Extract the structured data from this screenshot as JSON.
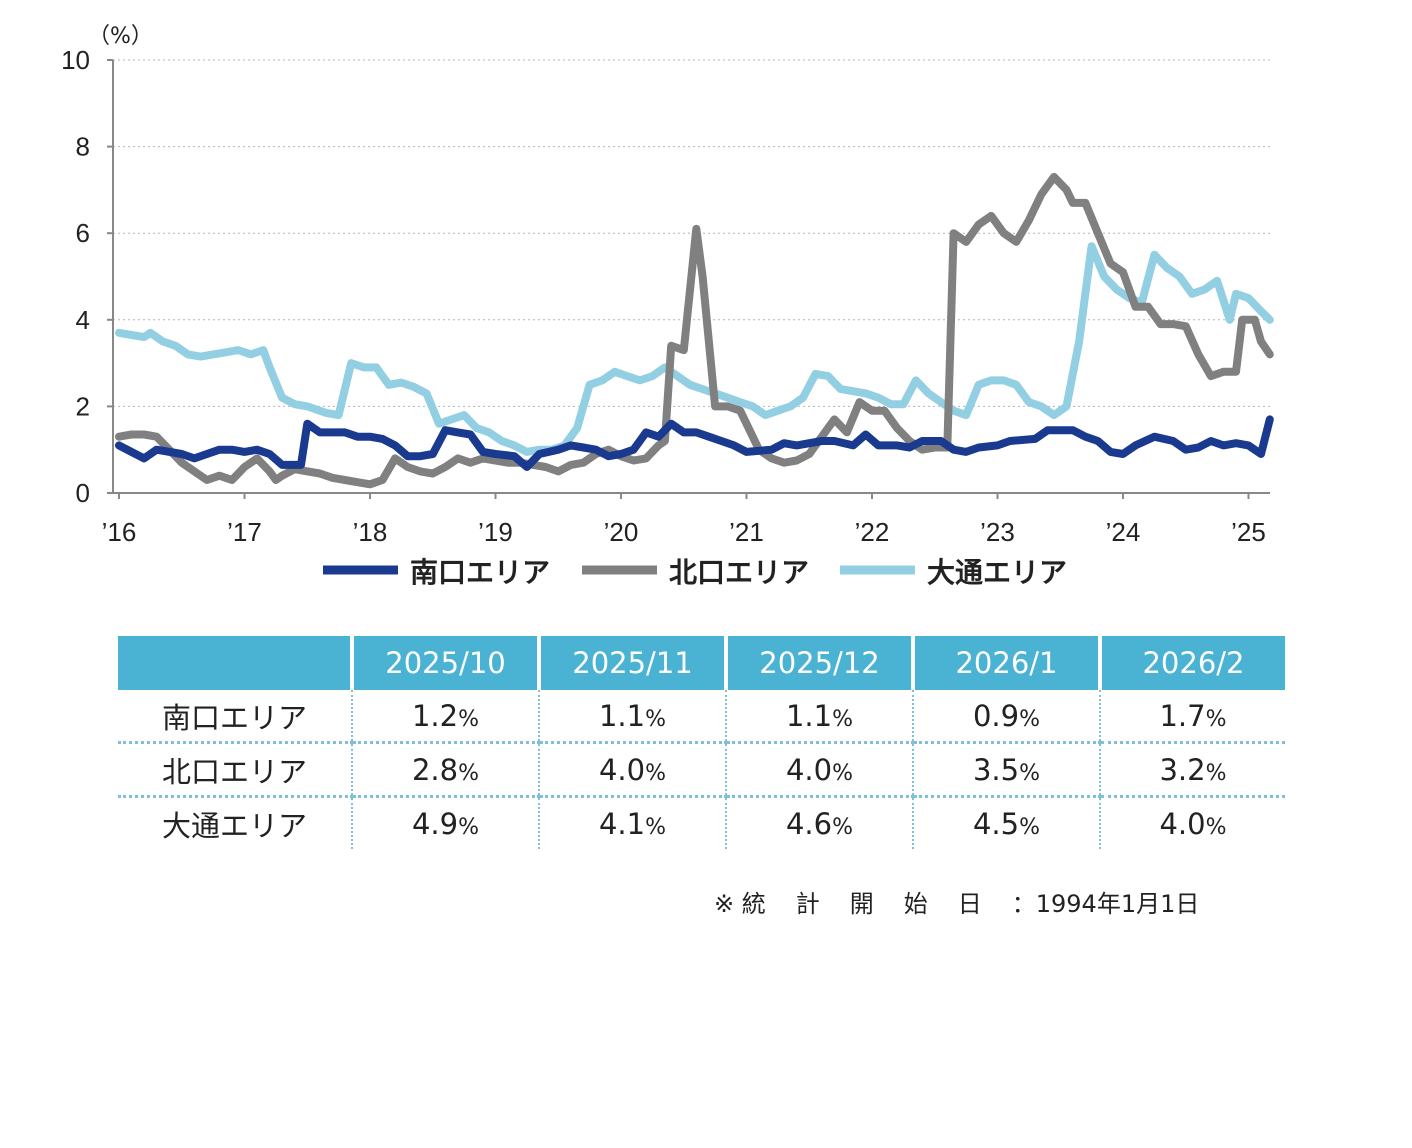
{
  "chart_data": {
    "type": "line",
    "unit_label": "（%）",
    "ylim": [
      0,
      10
    ],
    "yticks": [
      0,
      2,
      4,
      6,
      8,
      10
    ],
    "xlim": [
      2016,
      2025.25
    ],
    "xticks": [
      {
        "label": "’16",
        "value": 2016
      },
      {
        "label": "’17",
        "value": 2017
      },
      {
        "label": "’18",
        "value": 2018
      },
      {
        "label": "’19",
        "value": 2019
      },
      {
        "label": "’20",
        "value": 2020
      },
      {
        "label": "’21",
        "value": 2021
      },
      {
        "label": "’22",
        "value": 2022
      },
      {
        "label": "’23",
        "value": 2023
      },
      {
        "label": "’24",
        "value": 2024
      },
      {
        "label": "’25",
        "value": 2025
      }
    ],
    "grid": true,
    "legend_position": "bottom",
    "series": [
      {
        "name": "南口エリア",
        "color": "#1a3a8f",
        "points": [
          [
            2016.0,
            1.1
          ],
          [
            2016.1,
            0.95
          ],
          [
            2016.2,
            0.8
          ],
          [
            2016.3,
            1.0
          ],
          [
            2016.5,
            0.9
          ],
          [
            2016.6,
            0.8
          ],
          [
            2016.8,
            1.0
          ],
          [
            2016.9,
            1.0
          ],
          [
            2017.0,
            0.95
          ],
          [
            2017.1,
            1.0
          ],
          [
            2017.2,
            0.9
          ],
          [
            2017.3,
            0.65
          ],
          [
            2017.45,
            0.65
          ],
          [
            2017.5,
            1.6
          ],
          [
            2017.6,
            1.4
          ],
          [
            2017.8,
            1.4
          ],
          [
            2017.9,
            1.3
          ],
          [
            2018.0,
            1.3
          ],
          [
            2018.1,
            1.25
          ],
          [
            2018.2,
            1.1
          ],
          [
            2018.3,
            0.85
          ],
          [
            2018.4,
            0.85
          ],
          [
            2018.5,
            0.9
          ],
          [
            2018.6,
            1.45
          ],
          [
            2018.7,
            1.4
          ],
          [
            2018.8,
            1.35
          ],
          [
            2018.9,
            0.95
          ],
          [
            2019.0,
            0.9
          ],
          [
            2019.15,
            0.85
          ],
          [
            2019.25,
            0.6
          ],
          [
            2019.35,
            0.9
          ],
          [
            2019.5,
            1.0
          ],
          [
            2019.6,
            1.1
          ],
          [
            2019.7,
            1.05
          ],
          [
            2019.8,
            1.0
          ],
          [
            2019.9,
            0.85
          ],
          [
            2020.0,
            0.9
          ],
          [
            2020.1,
            1.0
          ],
          [
            2020.2,
            1.4
          ],
          [
            2020.3,
            1.3
          ],
          [
            2020.4,
            1.6
          ],
          [
            2020.5,
            1.4
          ],
          [
            2020.6,
            1.4
          ],
          [
            2020.7,
            1.3
          ],
          [
            2020.8,
            1.2
          ],
          [
            2020.9,
            1.1
          ],
          [
            2021.0,
            0.95
          ],
          [
            2021.2,
            1.0
          ],
          [
            2021.3,
            1.15
          ],
          [
            2021.4,
            1.1
          ],
          [
            2021.6,
            1.2
          ],
          [
            2021.7,
            1.2
          ],
          [
            2021.85,
            1.1
          ],
          [
            2021.95,
            1.35
          ],
          [
            2022.05,
            1.1
          ],
          [
            2022.2,
            1.1
          ],
          [
            2022.3,
            1.05
          ],
          [
            2022.4,
            1.2
          ],
          [
            2022.55,
            1.2
          ],
          [
            2022.65,
            1.0
          ],
          [
            2022.75,
            0.95
          ],
          [
            2022.85,
            1.05
          ],
          [
            2023.0,
            1.1
          ],
          [
            2023.1,
            1.2
          ],
          [
            2023.3,
            1.25
          ],
          [
            2023.4,
            1.45
          ],
          [
            2023.6,
            1.45
          ],
          [
            2023.7,
            1.3
          ],
          [
            2023.8,
            1.2
          ],
          [
            2023.9,
            0.95
          ],
          [
            2024.0,
            0.9
          ],
          [
            2024.1,
            1.1
          ],
          [
            2024.25,
            1.3
          ],
          [
            2024.4,
            1.2
          ],
          [
            2024.5,
            1.0
          ],
          [
            2024.6,
            1.05
          ],
          [
            2024.7,
            1.2
          ],
          [
            2024.8,
            1.1
          ],
          [
            2024.9,
            1.15
          ],
          [
            2025.0,
            1.1
          ],
          [
            2025.1,
            0.9
          ],
          [
            2025.17,
            1.7
          ]
        ]
      },
      {
        "name": "北口エリア",
        "color": "#808080",
        "points": [
          [
            2016.0,
            1.3
          ],
          [
            2016.1,
            1.35
          ],
          [
            2016.2,
            1.35
          ],
          [
            2016.3,
            1.3
          ],
          [
            2016.4,
            1.0
          ],
          [
            2016.5,
            0.7
          ],
          [
            2016.6,
            0.5
          ],
          [
            2016.7,
            0.3
          ],
          [
            2016.8,
            0.4
          ],
          [
            2016.9,
            0.3
          ],
          [
            2017.0,
            0.6
          ],
          [
            2017.1,
            0.8
          ],
          [
            2017.2,
            0.5
          ],
          [
            2017.25,
            0.3
          ],
          [
            2017.3,
            0.4
          ],
          [
            2017.4,
            0.55
          ],
          [
            2017.6,
            0.45
          ],
          [
            2017.7,
            0.35
          ],
          [
            2017.8,
            0.3
          ],
          [
            2017.9,
            0.25
          ],
          [
            2018.0,
            0.2
          ],
          [
            2018.1,
            0.3
          ],
          [
            2018.2,
            0.8
          ],
          [
            2018.3,
            0.6
          ],
          [
            2018.4,
            0.5
          ],
          [
            2018.5,
            0.45
          ],
          [
            2018.6,
            0.6
          ],
          [
            2018.7,
            0.8
          ],
          [
            2018.8,
            0.7
          ],
          [
            2018.9,
            0.8
          ],
          [
            2019.0,
            0.75
          ],
          [
            2019.1,
            0.7
          ],
          [
            2019.2,
            0.7
          ],
          [
            2019.3,
            0.65
          ],
          [
            2019.4,
            0.6
          ],
          [
            2019.5,
            0.5
          ],
          [
            2019.6,
            0.65
          ],
          [
            2019.7,
            0.7
          ],
          [
            2019.8,
            0.9
          ],
          [
            2019.9,
            1.0
          ],
          [
            2020.0,
            0.85
          ],
          [
            2020.1,
            0.75
          ],
          [
            2020.2,
            0.8
          ],
          [
            2020.3,
            1.1
          ],
          [
            2020.35,
            1.2
          ],
          [
            2020.4,
            3.4
          ],
          [
            2020.5,
            3.3
          ],
          [
            2020.6,
            6.1
          ],
          [
            2020.65,
            5.0
          ],
          [
            2020.75,
            2.0
          ],
          [
            2020.85,
            2.0
          ],
          [
            2020.95,
            1.9
          ],
          [
            2021.0,
            1.6
          ],
          [
            2021.1,
            1.0
          ],
          [
            2021.2,
            0.8
          ],
          [
            2021.3,
            0.7
          ],
          [
            2021.4,
            0.75
          ],
          [
            2021.5,
            0.9
          ],
          [
            2021.6,
            1.3
          ],
          [
            2021.7,
            1.7
          ],
          [
            2021.8,
            1.4
          ],
          [
            2021.9,
            2.1
          ],
          [
            2022.0,
            1.9
          ],
          [
            2022.1,
            1.9
          ],
          [
            2022.2,
            1.5
          ],
          [
            2022.3,
            1.2
          ],
          [
            2022.4,
            1.0
          ],
          [
            2022.5,
            1.05
          ],
          [
            2022.6,
            1.05
          ],
          [
            2022.65,
            6.0
          ],
          [
            2022.75,
            5.8
          ],
          [
            2022.85,
            6.2
          ],
          [
            2022.95,
            6.4
          ],
          [
            2023.05,
            6.0
          ],
          [
            2023.15,
            5.8
          ],
          [
            2023.25,
            6.3
          ],
          [
            2023.35,
            6.9
          ],
          [
            2023.45,
            7.3
          ],
          [
            2023.55,
            7.0
          ],
          [
            2023.6,
            6.7
          ],
          [
            2023.7,
            6.7
          ],
          [
            2023.8,
            6.0
          ],
          [
            2023.9,
            5.3
          ],
          [
            2024.0,
            5.1
          ],
          [
            2024.1,
            4.3
          ],
          [
            2024.2,
            4.3
          ],
          [
            2024.3,
            3.9
          ],
          [
            2024.4,
            3.9
          ],
          [
            2024.5,
            3.85
          ],
          [
            2024.6,
            3.2
          ],
          [
            2024.7,
            2.7
          ],
          [
            2024.8,
            2.8
          ],
          [
            2024.9,
            2.8
          ],
          [
            2024.95,
            4.0
          ],
          [
            2025.05,
            4.0
          ],
          [
            2025.1,
            3.5
          ],
          [
            2025.17,
            3.2
          ]
        ]
      },
      {
        "name": "大通エリア",
        "color": "#93cfe2",
        "points": [
          [
            2016.0,
            3.7
          ],
          [
            2016.1,
            3.65
          ],
          [
            2016.2,
            3.6
          ],
          [
            2016.25,
            3.7
          ],
          [
            2016.35,
            3.5
          ],
          [
            2016.45,
            3.4
          ],
          [
            2016.55,
            3.2
          ],
          [
            2016.65,
            3.15
          ],
          [
            2016.75,
            3.2
          ],
          [
            2016.85,
            3.25
          ],
          [
            2016.95,
            3.3
          ],
          [
            2017.05,
            3.2
          ],
          [
            2017.15,
            3.3
          ],
          [
            2017.2,
            2.9
          ],
          [
            2017.3,
            2.2
          ],
          [
            2017.4,
            2.05
          ],
          [
            2017.5,
            2.0
          ],
          [
            2017.65,
            1.85
          ],
          [
            2017.75,
            1.8
          ],
          [
            2017.85,
            3.0
          ],
          [
            2017.95,
            2.9
          ],
          [
            2018.05,
            2.9
          ],
          [
            2018.15,
            2.5
          ],
          [
            2018.25,
            2.55
          ],
          [
            2018.35,
            2.45
          ],
          [
            2018.45,
            2.3
          ],
          [
            2018.55,
            1.6
          ],
          [
            2018.65,
            1.7
          ],
          [
            2018.75,
            1.8
          ],
          [
            2018.85,
            1.5
          ],
          [
            2018.95,
            1.4
          ],
          [
            2019.05,
            1.2
          ],
          [
            2019.15,
            1.1
          ],
          [
            2019.25,
            0.95
          ],
          [
            2019.35,
            1.0
          ],
          [
            2019.45,
            1.0
          ],
          [
            2019.55,
            1.1
          ],
          [
            2019.65,
            1.5
          ],
          [
            2019.75,
            2.5
          ],
          [
            2019.85,
            2.6
          ],
          [
            2019.95,
            2.8
          ],
          [
            2020.05,
            2.7
          ],
          [
            2020.15,
            2.6
          ],
          [
            2020.25,
            2.7
          ],
          [
            2020.35,
            2.9
          ],
          [
            2020.45,
            2.7
          ],
          [
            2020.55,
            2.5
          ],
          [
            2020.65,
            2.4
          ],
          [
            2020.75,
            2.3
          ],
          [
            2020.85,
            2.2
          ],
          [
            2020.95,
            2.1
          ],
          [
            2021.05,
            2.0
          ],
          [
            2021.15,
            1.8
          ],
          [
            2021.25,
            1.9
          ],
          [
            2021.35,
            2.0
          ],
          [
            2021.45,
            2.2
          ],
          [
            2021.55,
            2.75
          ],
          [
            2021.65,
            2.7
          ],
          [
            2021.75,
            2.4
          ],
          [
            2021.85,
            2.35
          ],
          [
            2021.95,
            2.3
          ],
          [
            2022.05,
            2.2
          ],
          [
            2022.15,
            2.05
          ],
          [
            2022.25,
            2.05
          ],
          [
            2022.35,
            2.6
          ],
          [
            2022.45,
            2.3
          ],
          [
            2022.55,
            2.1
          ],
          [
            2022.65,
            1.9
          ],
          [
            2022.75,
            1.8
          ],
          [
            2022.85,
            2.5
          ],
          [
            2022.95,
            2.6
          ],
          [
            2023.05,
            2.6
          ],
          [
            2023.15,
            2.5
          ],
          [
            2023.25,
            2.1
          ],
          [
            2023.35,
            2.0
          ],
          [
            2023.45,
            1.8
          ],
          [
            2023.55,
            2.0
          ],
          [
            2023.65,
            3.5
          ],
          [
            2023.75,
            5.7
          ],
          [
            2023.85,
            5.0
          ],
          [
            2023.95,
            4.7
          ],
          [
            2024.05,
            4.5
          ],
          [
            2024.15,
            4.4
          ],
          [
            2024.25,
            5.5
          ],
          [
            2024.35,
            5.2
          ],
          [
            2024.45,
            5.0
          ],
          [
            2024.55,
            4.6
          ],
          [
            2024.65,
            4.7
          ],
          [
            2024.75,
            4.9
          ],
          [
            2024.85,
            4.0
          ],
          [
            2024.9,
            4.6
          ],
          [
            2025.0,
            4.5
          ],
          [
            2025.1,
            4.2
          ],
          [
            2025.17,
            4.0
          ]
        ]
      }
    ]
  },
  "table": {
    "headers": [
      "2025/10",
      "2025/11",
      "2025/12",
      "2026/1",
      "2026/2"
    ],
    "rows": [
      {
        "label": "南口エリア",
        "values": [
          "1.2",
          "1.1",
          "1.1",
          "0.9",
          "1.7"
        ]
      },
      {
        "label": "北口エリア",
        "values": [
          "2.8",
          "4.0",
          "4.0",
          "3.5",
          "3.2"
        ]
      },
      {
        "label": "大通エリア",
        "values": [
          "4.9",
          "4.1",
          "4.6",
          "4.5",
          "4.0"
        ]
      }
    ],
    "percent_sign": "%"
  },
  "note": {
    "prefix": "※ ",
    "label": "統計開始日",
    "separator": "：",
    "value": "1994年1月1日"
  }
}
